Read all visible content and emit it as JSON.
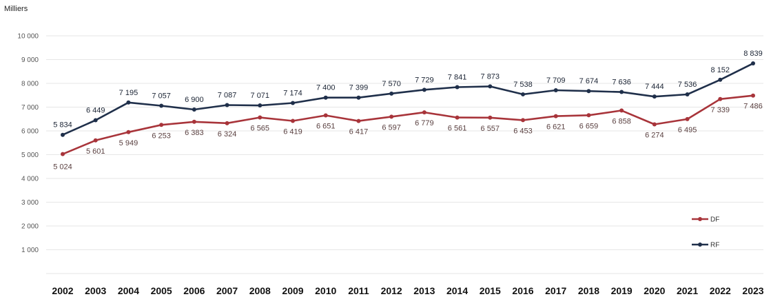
{
  "chart_data": {
    "type": "line",
    "unit_label": "Milliers",
    "x": [
      "2002",
      "2003",
      "2004",
      "2005",
      "2006",
      "2007",
      "2008",
      "2009",
      "2010",
      "2011",
      "2012",
      "2013",
      "2014",
      "2015",
      "2016",
      "2017",
      "2018",
      "2019",
      "2020",
      "2021",
      "2022",
      "2023"
    ],
    "ylim": [
      0,
      10000
    ],
    "yticks": [
      "10 000",
      "9 000",
      "8 000",
      "7 000",
      "6 000",
      "5 000",
      "4 000",
      "3 000",
      "2 000",
      "1 000",
      ""
    ],
    "grid": true,
    "legend_position": "bottom-right",
    "series": [
      {
        "name": "RF",
        "color": "#1f2f4a",
        "values": [
          5834,
          6449,
          7195,
          7057,
          6900,
          7087,
          7071,
          7174,
          7400,
          7399,
          7570,
          7729,
          7841,
          7873,
          7538,
          7709,
          7674,
          7636,
          7444,
          7536,
          8152,
          8839
        ],
        "labels": [
          "5 834",
          "6 449",
          "7 195",
          "7 057",
          "6 900",
          "7 087",
          "7 071",
          "7 174",
          "7 400",
          "7 399",
          "7 570",
          "7 729",
          "7 841",
          "7 873",
          "7 538",
          "7 709",
          "7 674",
          "7 636",
          "7 444",
          "7 536",
          "8 152",
          "8 839"
        ]
      },
      {
        "name": "DF",
        "color": "#a8343a",
        "values": [
          5024,
          5601,
          5949,
          6253,
          6383,
          6324,
          6565,
          6419,
          6651,
          6417,
          6597,
          6779,
          6561,
          6557,
          6453,
          6621,
          6659,
          6858,
          6274,
          6495,
          7339,
          7486
        ],
        "labels": [
          "5 024",
          "5 601",
          "5 949",
          "6 253",
          "6 383",
          "6 324",
          "6 565",
          "6 419",
          "6 651",
          "6 417",
          "6 597",
          "6 779",
          "6 561",
          "6 557",
          "6 453",
          "6 621",
          "6 659",
          "6 858",
          "6 274",
          "6 495",
          "7 339",
          "7 486"
        ]
      }
    ]
  }
}
